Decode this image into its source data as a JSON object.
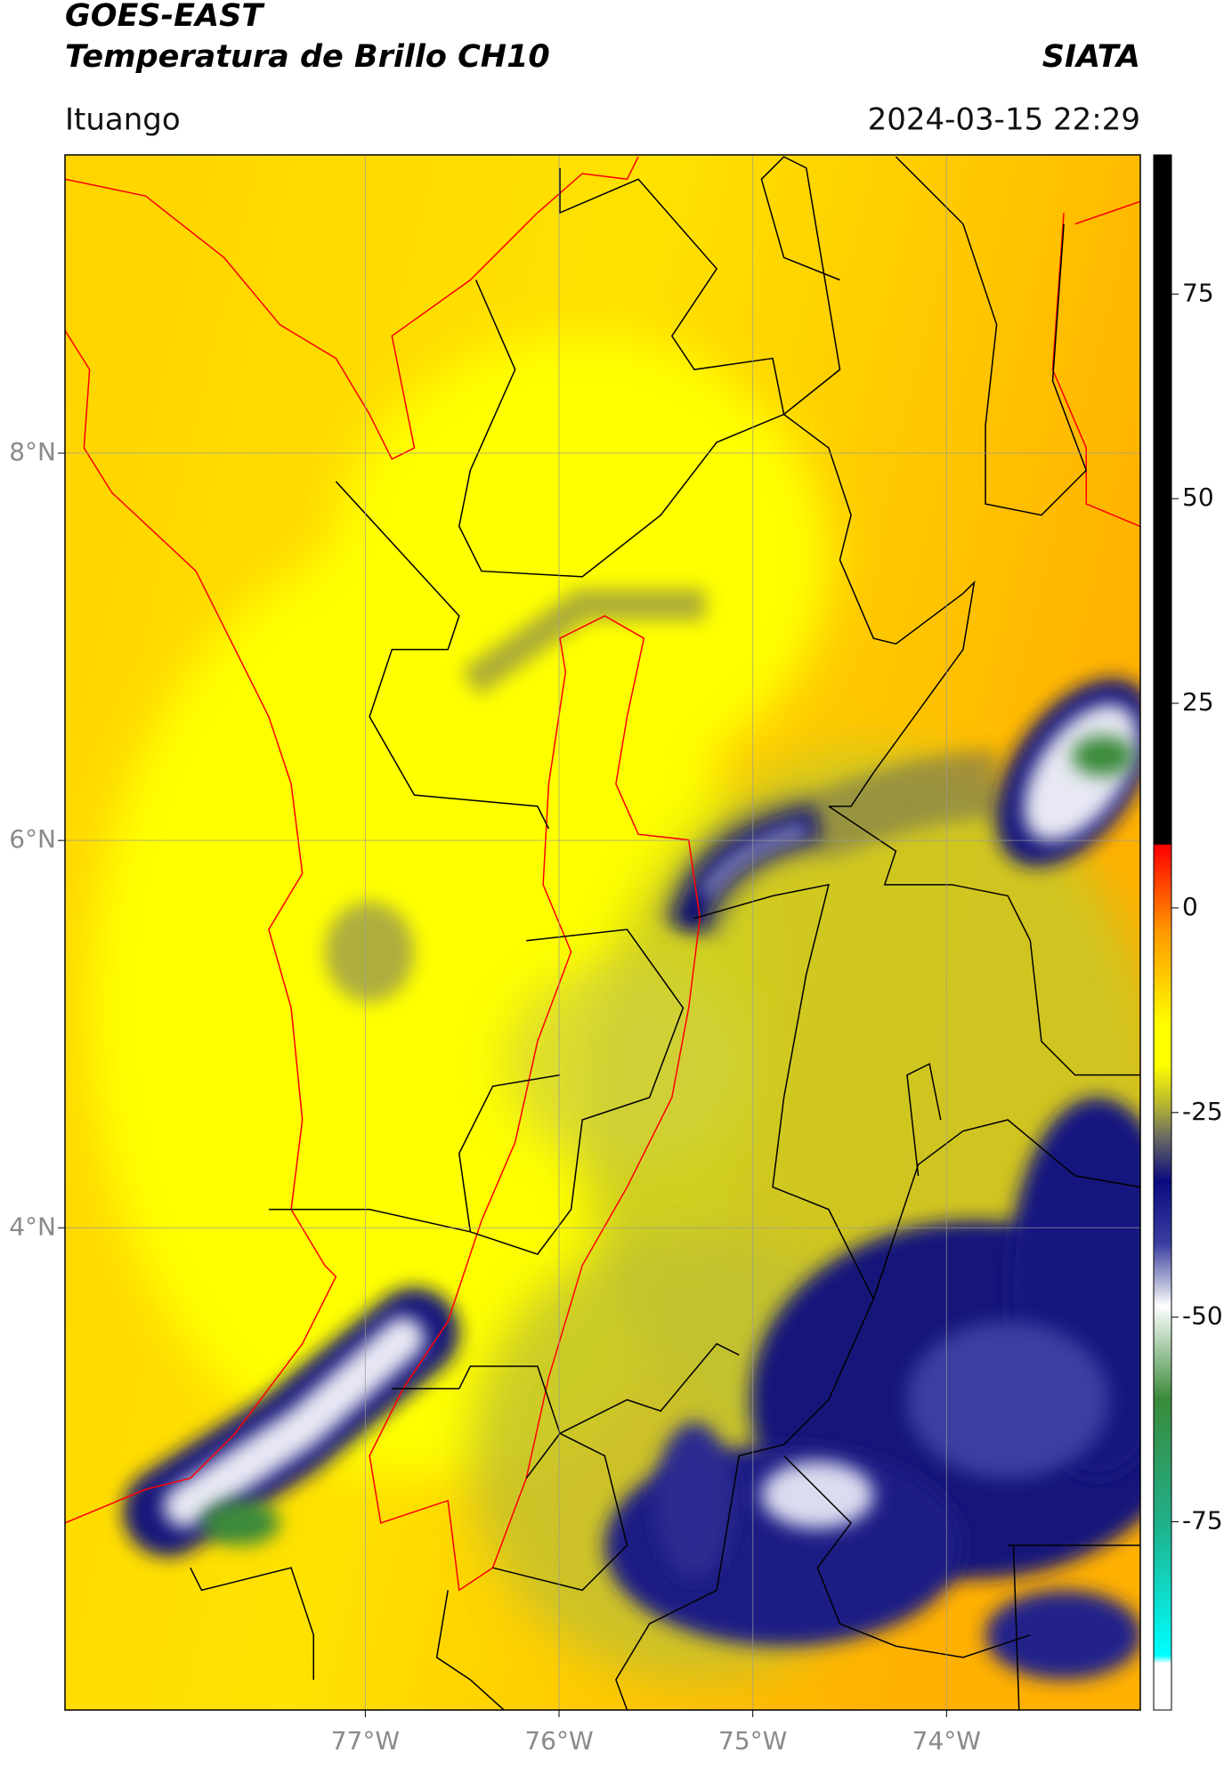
{
  "chart_data": {
    "type": "map",
    "title": "GOES-EAST",
    "subtitle": "Temperatura de Brillo CH10",
    "source": "SIATA",
    "location": "Ituango",
    "datetime": "2024-03-15 22:29",
    "xlim": [
      -78.55,
      -73.0
    ],
    "ylim": [
      1.51,
      9.54
    ],
    "xticks": [
      {
        "value": -77,
        "label": "77°W"
      },
      {
        "value": -76,
        "label": "76°W"
      },
      {
        "value": -75,
        "label": "75°W"
      },
      {
        "value": -74,
        "label": "74°W"
      }
    ],
    "yticks": [
      {
        "value": 8,
        "label": "8°N"
      },
      {
        "value": 6,
        "label": "6°N"
      },
      {
        "value": 4,
        "label": "4°N"
      }
    ],
    "grid": true,
    "colorbar": {
      "clim": [
        -98,
        92
      ],
      "ticks": [
        75,
        50,
        25,
        0,
        -25,
        -50,
        -75
      ]
    }
  }
}
